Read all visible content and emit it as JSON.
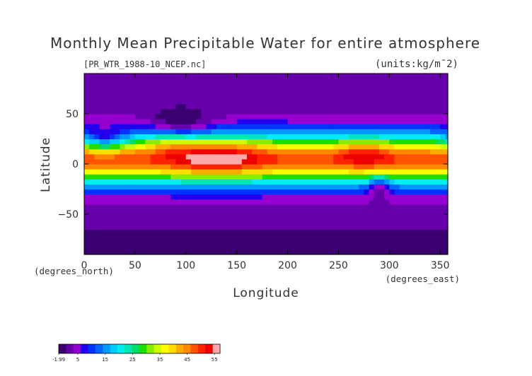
{
  "chart_data": {
    "type": "heatmap",
    "title": "Monthly Mean Precipitable Water for entire atmosphere",
    "subtitle": "[PR_WTR_1988-10_NCEP.nc]",
    "units_label": "(units:kg/m¯2)",
    "xlabel": "Longitude",
    "ylabel": "Latitude",
    "x_unit_label": "(degrees_east)",
    "y_unit_label": "(degrees_north)",
    "xlim": [
      0,
      357.5
    ],
    "ylim": [
      -90,
      90
    ],
    "x_ticks": [
      0,
      50,
      100,
      150,
      200,
      250,
      300,
      350
    ],
    "y_ticks": [
      -50,
      0,
      50
    ],
    "grid": false,
    "colorbar": {
      "placement": "bottom-left",
      "range": [
        -1.99,
        57
      ],
      "tick_values": [
        -1.99,
        5,
        15,
        25,
        35,
        45,
        55
      ],
      "tick_labels": [
        "-1.99",
        "5",
        "15",
        "25",
        "35",
        "45",
        "55"
      ],
      "colors": [
        "#3b0070",
        "#6600aa",
        "#9500d0",
        "#2200ee",
        "#0033ff",
        "#0066ff",
        "#0099ff",
        "#00ccff",
        "#00eeee",
        "#00e6b0",
        "#00dd66",
        "#22dd00",
        "#88ee00",
        "#ccff00",
        "#ffff00",
        "#ffdd00",
        "#ffaa00",
        "#ff8800",
        "#ff5500",
        "#ff2200",
        "#ee0000",
        "#ffaaaa"
      ]
    }
  }
}
